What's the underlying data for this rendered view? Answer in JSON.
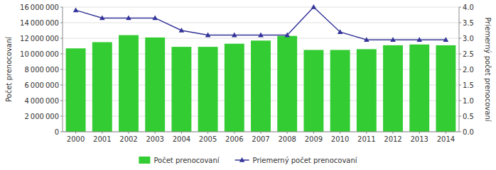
{
  "chart_data": {
    "type": "bar",
    "categories": [
      "2000",
      "2001",
      "2002",
      "2003",
      "2004",
      "2005",
      "2006",
      "2007",
      "2008",
      "2009",
      "2010",
      "2011",
      "2012",
      "2013",
      "2014"
    ],
    "series": [
      {
        "name": "Počet prenocovaní",
        "type": "bar",
        "color": "#33cc33",
        "values": [
          10700000,
          11500000,
          12400000,
          12100000,
          10900000,
          10900000,
          11300000,
          11700000,
          12300000,
          10500000,
          10500000,
          10600000,
          11100000,
          11200000,
          11100000
        ]
      },
      {
        "name": "Priemerný počet prenocovaní",
        "type": "line",
        "axis": "y2",
        "color": "#333399",
        "marker": "triangle",
        "values": [
          3.9,
          3.65,
          3.65,
          3.65,
          3.25,
          3.1,
          3.1,
          3.1,
          3.1,
          4.0,
          3.2,
          2.95,
          2.95,
          2.95,
          2.95
        ]
      }
    ],
    "ylabel": "Počet prenocovaní",
    "y2label": "Priemerný počet prenocovaní",
    "ylim": [
      0,
      16000000
    ],
    "yticks": [
      0,
      {
        "value": 2000000,
        "label": "2 000 000"
      },
      {
        "value": 4000000,
        "label": "4 000 000"
      },
      {
        "value": 6000000,
        "label": "6 000 000"
      },
      {
        "value": 8000000,
        "label": "8 000 000"
      },
      {
        "value": 10000000,
        "label": "10 000 000"
      },
      {
        "value": 12000000,
        "label": "12 000 000"
      },
      {
        "value": 14000000,
        "label": "14 000 000"
      },
      {
        "value": 16000000,
        "label": "16 000 000"
      }
    ],
    "y2lim": [
      0.0,
      4.0
    ],
    "y2ticks": [
      {
        "value": 0.0,
        "label": "0.0"
      },
      0.5,
      {
        "value": 1.0,
        "label": "1.0"
      },
      1.5,
      {
        "value": 2.0,
        "label": "2.0"
      },
      2.5,
      {
        "value": 3.0,
        "label": "3.0"
      },
      3.5,
      {
        "value": 4.0,
        "label": "4.0"
      }
    ],
    "grid": true,
    "legend": "bottom"
  }
}
